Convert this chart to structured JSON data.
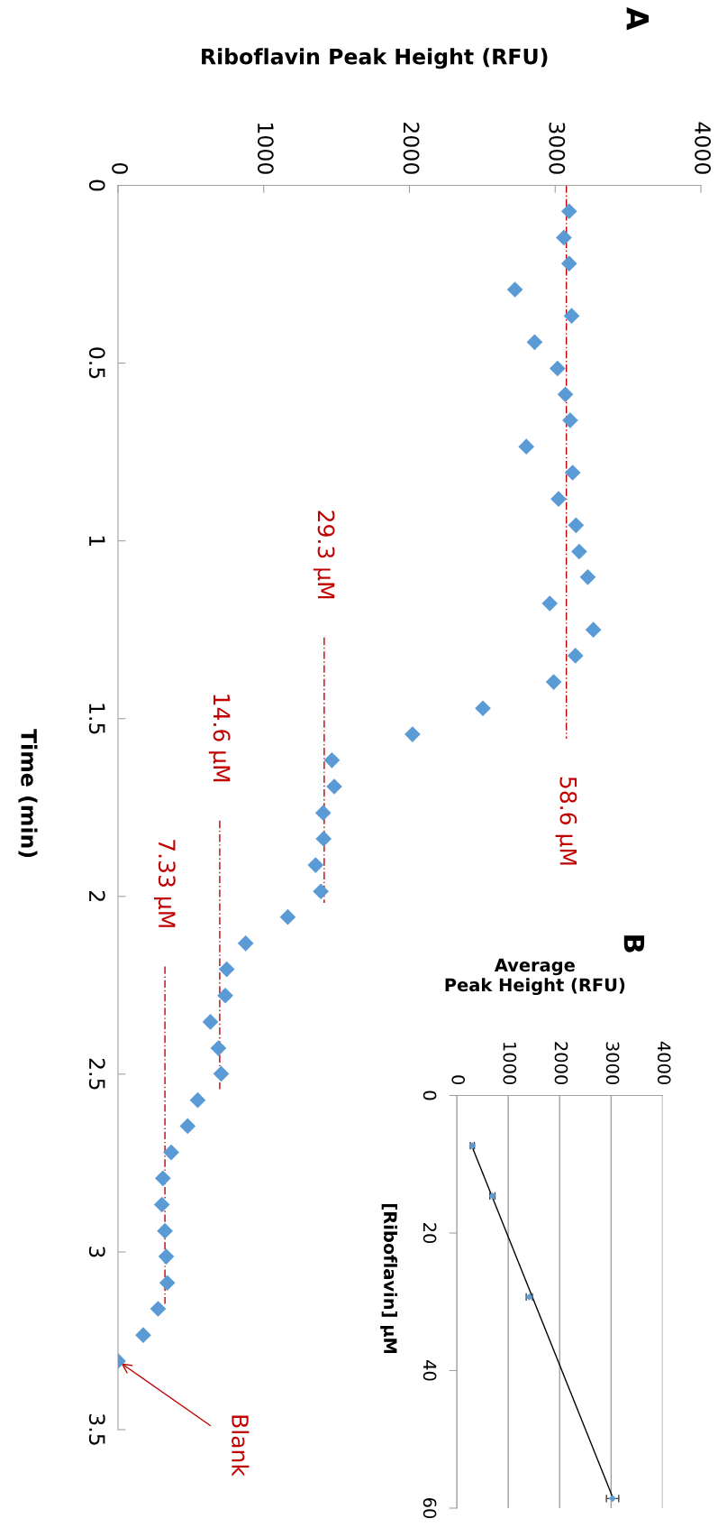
{
  "chart_data": [
    {
      "type": "scatter",
      "title": "A",
      "xlabel": "Riboflavin Peak Height (RFU)",
      "ylabel": "Time (min)",
      "series": [
        {
          "color": "#5b9bd5",
          "x": [
            3096,
            3060,
            3096,
            2724,
            3113,
            2859,
            3016,
            3070,
            3103,
            2802,
            3120,
            3023,
            3143,
            3165,
            3224,
            2963,
            3262,
            3139,
            2990,
            2504,
            2021,
            1468,
            1484,
            1408,
            1411,
            1356,
            1392,
            1165,
            876,
            746,
            736,
            634,
            689,
            708,
            547,
            478,
            365,
            308,
            301,
            322,
            331,
            338,
            275,
            173,
            0
          ],
          "values": [
            0.073,
            0.147,
            0.22,
            0.293,
            0.367,
            0.441,
            0.515,
            0.588,
            0.661,
            0.735,
            0.808,
            0.882,
            0.956,
            1.03,
            1.102,
            1.176,
            1.25,
            1.323,
            1.397,
            1.471,
            1.544,
            1.617,
            1.691,
            1.765,
            1.838,
            1.912,
            1.986,
            2.058,
            2.132,
            2.205,
            2.279,
            2.353,
            2.427,
            2.499,
            2.573,
            2.646,
            2.72,
            2.793,
            2.867,
            2.941,
            3.013,
            3.087,
            3.16,
            3.234,
            3.307
          ]
        },
        {
          "type": "line",
          "name": "58.6 µM",
          "x": [
            3077,
            3077
          ],
          "values": [
            0,
            1.556
          ],
          "color": "#c00000",
          "line_style": "dashed",
          "marker": "none"
        },
        {
          "type": "line",
          "name": "29.3 µM",
          "x": [
            1415,
            1415
          ],
          "values": [
            1.272,
            2.018
          ],
          "color": "#c00000",
          "line_style": "dashed",
          "marker": "none"
        },
        {
          "type": "line",
          "name": "14.6 µM",
          "x": [
            698,
            698
          ],
          "values": [
            1.787,
            2.542
          ],
          "color": "#c00000",
          "line_style": "dashed",
          "marker": "none"
        },
        {
          "type": "line",
          "name": "7.33 µM",
          "x": [
            322,
            322
          ],
          "values": [
            2.197,
            3.146
          ],
          "color": "#c00000",
          "line_style": "dashed",
          "marker": "none"
        }
      ],
      "annotations": [
        {
          "text": "Blank",
          "x": 0,
          "y": 3.307
        }
      ],
      "xlim": [
        0,
        4000
      ],
      "xticks": [
        0,
        1000,
        2000,
        3000,
        4000
      ],
      "ylim": [
        3.5,
        0
      ],
      "yticks": [
        0,
        0.5,
        1,
        1.5,
        2,
        2.5,
        3,
        3.5
      ],
      "marker": "diamond",
      "grid": false
    },
    {
      "type": "scatter",
      "title": "B",
      "xlabel": "Average\nPeak Height (RFU)",
      "ylabel": "[Riboflavin] µM",
      "series": [
        {
          "color": "#5b9bd5",
          "x": [
            303,
            693,
            1410,
            3028
          ],
          "values": [
            7.3,
            14.6,
            29.3,
            58.6
          ],
          "xerrors": [
            40,
            50,
            60,
            120
          ]
        },
        {
          "type": "line",
          "x": [
            290,
            3040
          ],
          "values": [
            7.3,
            58.6
          ],
          "color": "#000000",
          "marker": "none"
        }
      ],
      "xlim": [
        0,
        4000
      ],
      "xticks": [
        0,
        1000,
        2000,
        3000,
        4000
      ],
      "ylim": [
        60,
        0
      ],
      "yticks": [
        0,
        20,
        40,
        60
      ],
      "marker": "diamond",
      "grid": "x"
    }
  ]
}
